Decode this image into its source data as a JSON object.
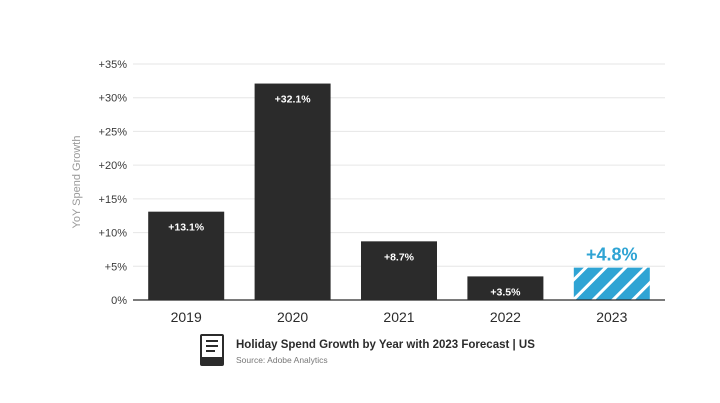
{
  "chart_data": {
    "type": "bar",
    "categories": [
      "2019",
      "2020",
      "2021",
      "2022",
      "2023"
    ],
    "values": [
      13.1,
      32.1,
      8.7,
      3.5,
      4.8
    ],
    "data_labels": [
      "+13.1%",
      "+32.1%",
      "+8.7%",
      "+3.5%",
      "+4.8%"
    ],
    "forecast_index": 4,
    "ylabel": "YoY Spend Growth",
    "ylim": [
      0,
      35
    ],
    "y_ticks": [
      0,
      5,
      10,
      15,
      20,
      25,
      30,
      35
    ],
    "y_tick_labels": [
      "0%",
      "+5%",
      "+10%",
      "+15%",
      "+20%",
      "+25%",
      "+30%",
      "+35%"
    ],
    "grid": true,
    "colors": {
      "actual": "#2b2b2b",
      "forecast": "#2fa4d4",
      "forecast_hatch": "#ffffff",
      "grid": "#e6e6e6",
      "axis": "#2b2b2b",
      "label_light": "#ffffff"
    }
  },
  "footer": {
    "icon": "document-icon",
    "title": "Holiday Spend Growth by Year with 2023 Forecast | US",
    "source": "Source: Adobe Analytics"
  }
}
